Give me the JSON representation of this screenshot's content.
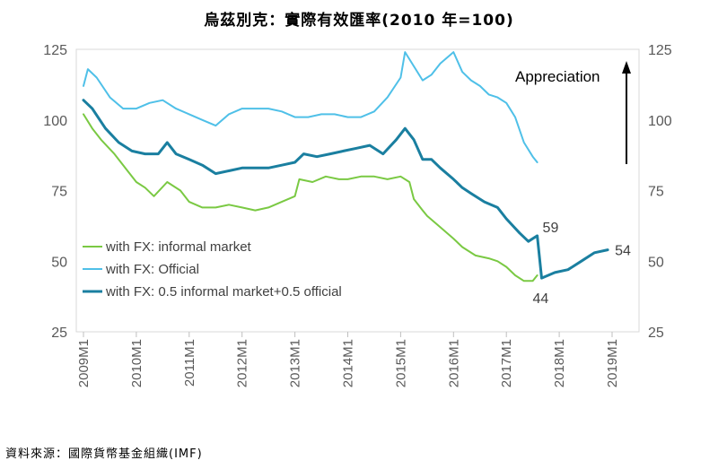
{
  "chart_data": {
    "type": "line",
    "title": "烏茲別克：實際有效匯率(2010 年=100)",
    "source": "資料來源：國際貨幣基金組織(IMF)",
    "x_start": "2009M1",
    "x_end": "2019M1",
    "x_tick_labels": [
      "2009M1",
      "2010M1",
      "2011M1",
      "2012M1",
      "2013M1",
      "2014M1",
      "2015M1",
      "2016M1",
      "2017M1",
      "2018M1",
      "2019M1"
    ],
    "ylim": [
      25,
      125
    ],
    "y_ticks": [
      25,
      50,
      75,
      100,
      125
    ],
    "grid": false,
    "legend_position": "bottom-left",
    "annotation": "Appreciation",
    "series": [
      {
        "name": "with FX: informal market",
        "color": "#7ac943",
        "x": [
          "2009M1",
          "2009M3",
          "2009M5",
          "2009M8",
          "2009M11",
          "2010M1",
          "2010M3",
          "2010M5",
          "2010M8",
          "2010M11",
          "2011M1",
          "2011M4",
          "2011M7",
          "2011M10",
          "2012M1",
          "2012M4",
          "2012M7",
          "2012M10",
          "2013M1",
          "2013M2",
          "2013M5",
          "2013M8",
          "2013M11",
          "2014M1",
          "2014M4",
          "2014M7",
          "2014M10",
          "2015M1",
          "2015M3",
          "2015M4",
          "2015M6",
          "2015M7",
          "2015M10",
          "2016M1",
          "2016M3",
          "2016M6",
          "2016M9",
          "2016M11",
          "2017M1",
          "2017M3",
          "2017M5",
          "2017M7",
          "2017M8"
        ],
        "y": [
          102,
          97,
          93,
          88,
          82,
          78,
          76,
          73,
          78,
          75,
          71,
          69,
          69,
          70,
          69,
          68,
          69,
          71,
          73,
          79,
          78,
          80,
          79,
          79,
          80,
          80,
          79,
          80,
          78,
          72,
          68,
          66,
          62,
          58,
          55,
          52,
          51,
          50,
          48,
          45,
          43,
          43,
          45
        ]
      },
      {
        "name": "with FX: Official",
        "color": "#4fc0e8",
        "x": [
          "2009M1",
          "2009M2",
          "2009M4",
          "2009M7",
          "2009M10",
          "2010M1",
          "2010M4",
          "2010M7",
          "2010M10",
          "2011M1",
          "2011M4",
          "2011M7",
          "2011M10",
          "2012M1",
          "2012M4",
          "2012M7",
          "2012M10",
          "2013M1",
          "2013M4",
          "2013M7",
          "2013M10",
          "2014M1",
          "2014M4",
          "2014M7",
          "2014M10",
          "2015M1",
          "2015M2",
          "2015M4",
          "2015M6",
          "2015M8",
          "2015M10",
          "2016M1",
          "2016M3",
          "2016M5",
          "2016M7",
          "2016M9",
          "2016M11",
          "2017M1",
          "2017M3",
          "2017M5",
          "2017M7",
          "2017M8"
        ],
        "y": [
          112,
          118,
          115,
          108,
          104,
          104,
          106,
          107,
          104,
          102,
          100,
          98,
          102,
          104,
          104,
          104,
          103,
          101,
          101,
          102,
          102,
          101,
          101,
          103,
          108,
          115,
          124,
          119,
          114,
          116,
          120,
          124,
          117,
          114,
          112,
          109,
          108,
          106,
          101,
          92,
          87,
          85
        ]
      },
      {
        "name": "with FX: 0.5 informal market+0.5 official",
        "color": "#1a7fa0",
        "x": [
          "2009M1",
          "2009M3",
          "2009M6",
          "2009M9",
          "2009M12",
          "2010M3",
          "2010M6",
          "2010M8",
          "2010M10",
          "2011M1",
          "2011M4",
          "2011M7",
          "2011M10",
          "2012M1",
          "2012M4",
          "2012M7",
          "2012M10",
          "2013M1",
          "2013M3",
          "2013M6",
          "2013M9",
          "2013M12",
          "2014M3",
          "2014M6",
          "2014M9",
          "2014M12",
          "2015M2",
          "2015M4",
          "2015M6",
          "2015M8",
          "2015M10",
          "2016M1",
          "2016M3",
          "2016M5",
          "2016M8",
          "2016M11",
          "2017M1",
          "2017M4",
          "2017M6",
          "2017M8",
          "2017M9",
          "2017M12",
          "2018M3",
          "2018M6",
          "2018M9",
          "2018M12"
        ],
        "y": [
          107,
          104,
          97,
          92,
          89,
          88,
          88,
          92,
          88,
          86,
          84,
          81,
          82,
          83,
          83,
          83,
          84,
          85,
          88,
          87,
          88,
          89,
          90,
          91,
          88,
          93,
          97,
          93,
          86,
          86,
          83,
          79,
          76,
          74,
          71,
          69,
          65,
          60,
          57,
          59,
          44,
          46,
          47,
          50,
          53,
          54
        ]
      }
    ],
    "labels": [
      {
        "text": "59",
        "x": "2017M8",
        "y": 59
      },
      {
        "text": "44",
        "x": "2017M9",
        "y": 44
      },
      {
        "text": "54",
        "x": "2018M12",
        "y": 54
      }
    ]
  }
}
